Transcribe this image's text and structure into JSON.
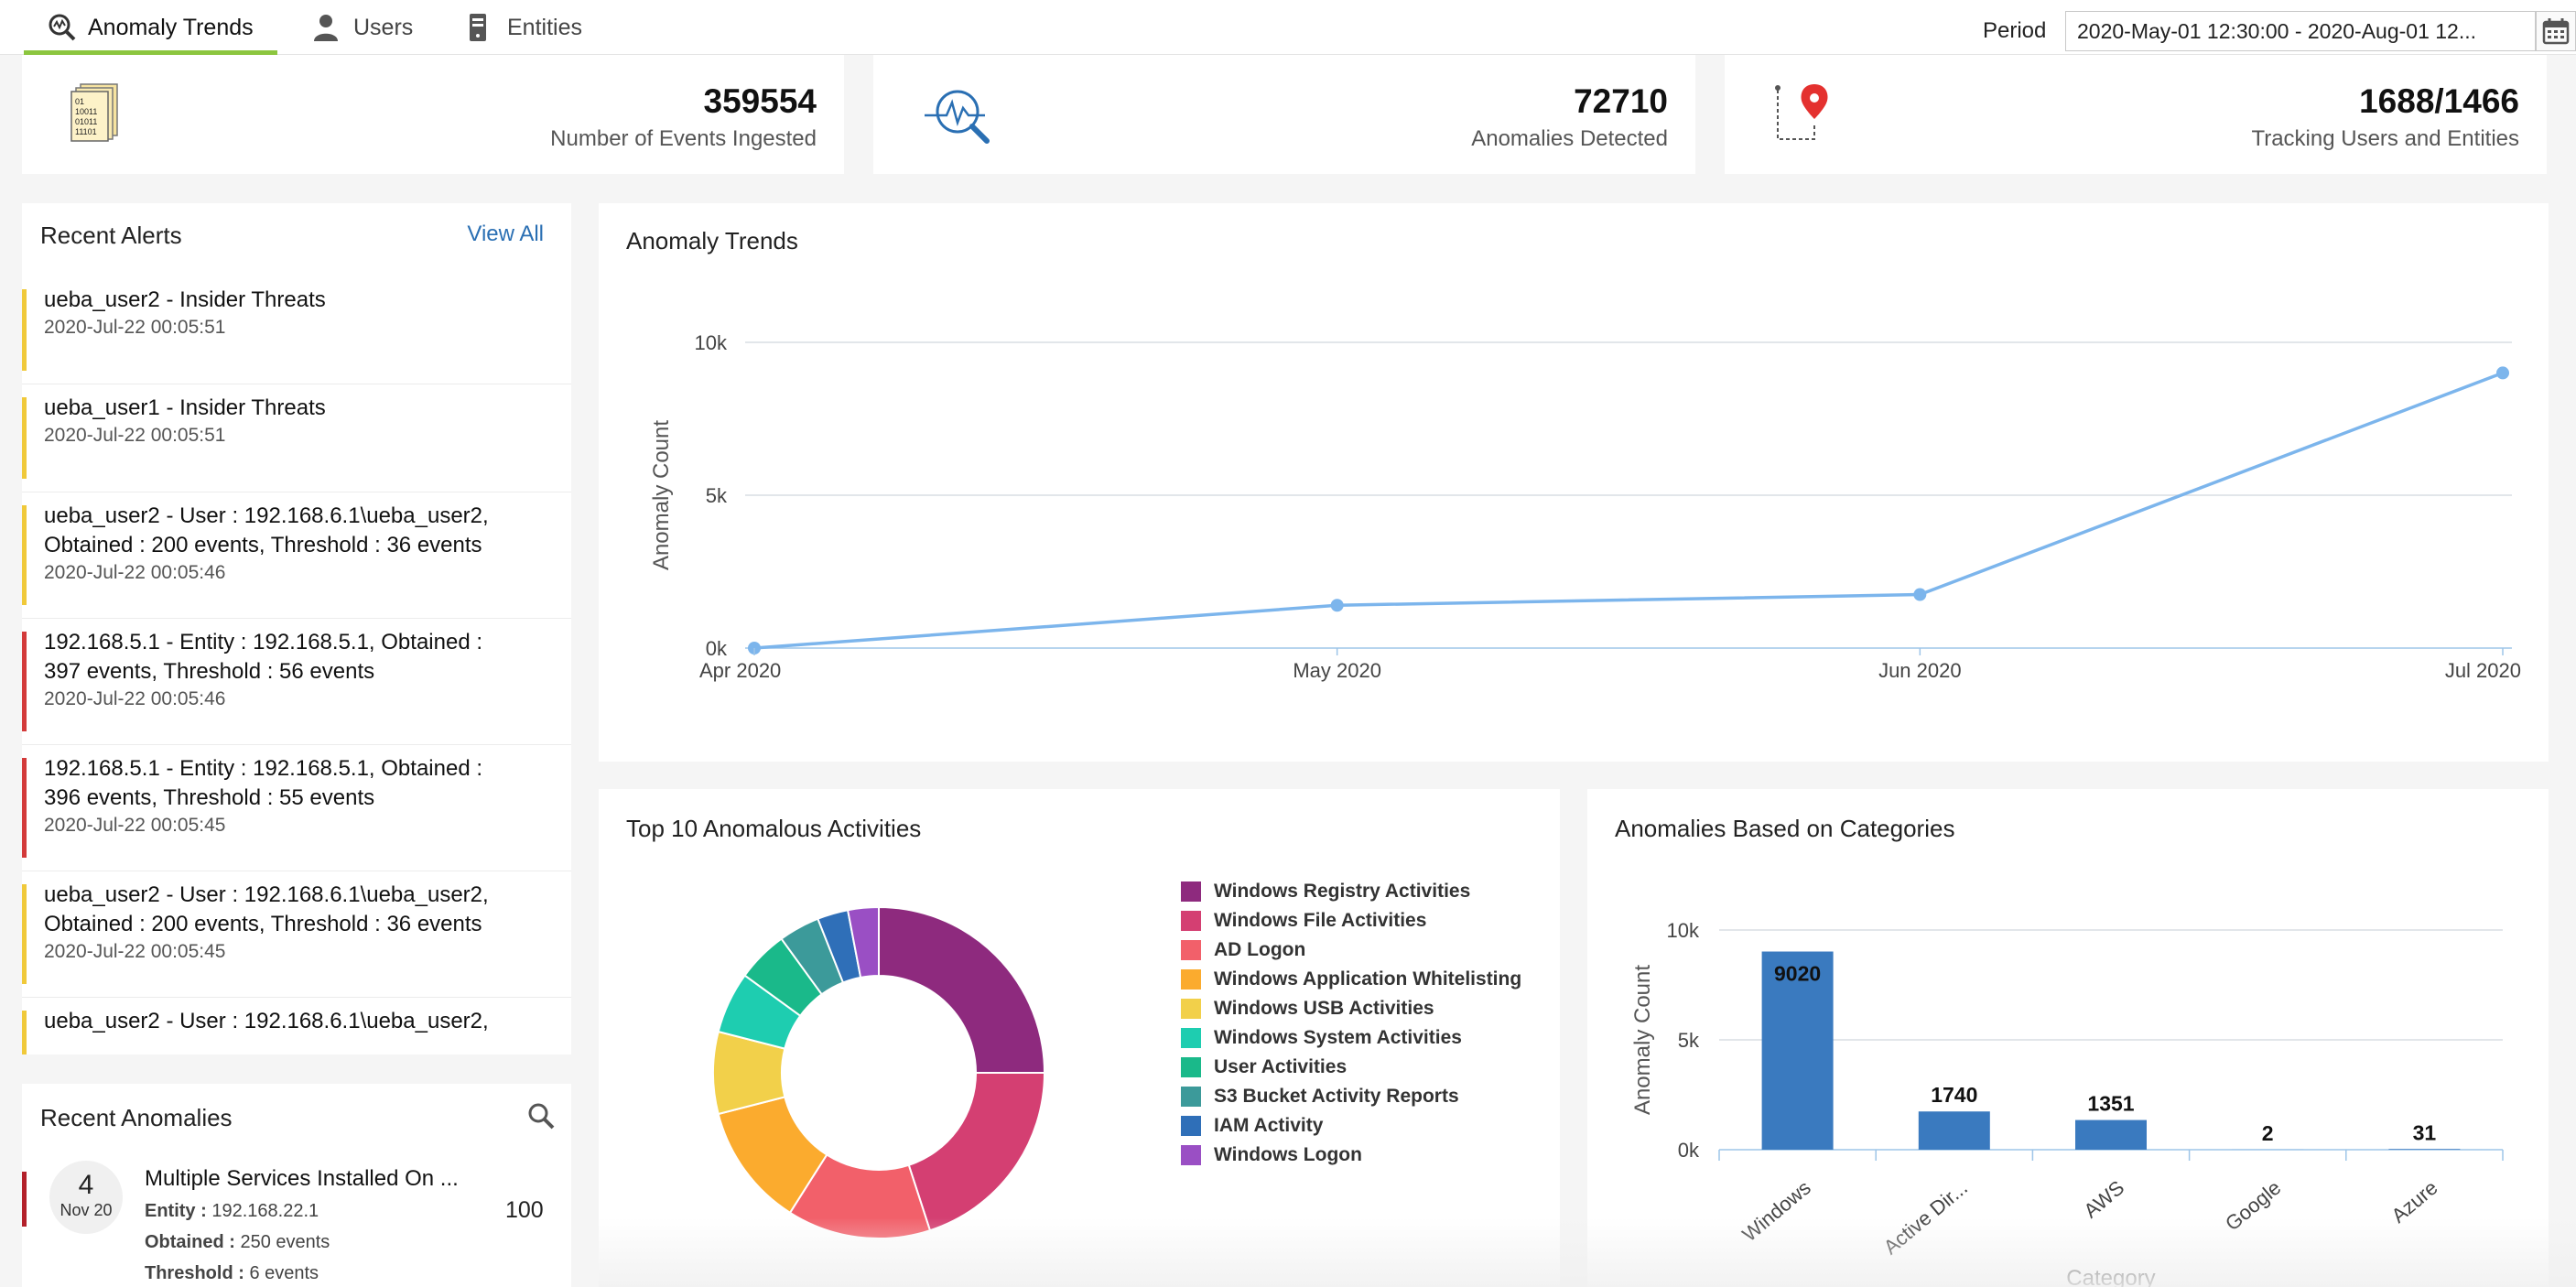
{
  "nav": {
    "tabs": [
      {
        "label": "Anomaly Trends",
        "active": true
      },
      {
        "label": "Users"
      },
      {
        "label": "Entities"
      }
    ],
    "period_label": "Period",
    "period_value": "2020-May-01 12:30:00 - 2020-Aug-01 12..."
  },
  "stats": {
    "events": {
      "value": "359554",
      "label": "Number of Events Ingested"
    },
    "anomalies": {
      "value": "72710",
      "label": "Anomalies Detected"
    },
    "tracking": {
      "value": "1688/1466",
      "label": "Tracking Users and Entities"
    }
  },
  "alerts": {
    "title": "Recent Alerts",
    "view_all": "View All",
    "items": [
      {
        "line1": "ueba_user2 - Insider Threats",
        "line2": "",
        "time": "2020-Jul-22 00:05:51",
        "color": "#f0c93a"
      },
      {
        "line1": "ueba_user1 - Insider Threats",
        "line2": "",
        "time": "2020-Jul-22 00:05:51",
        "color": "#f0c93a"
      },
      {
        "line1": "ueba_user2 - User : 192.168.6.1\\ueba_user2,",
        "line2": "Obtained : 200 events, Threshold : 36 events",
        "time": "2020-Jul-22 00:05:46",
        "color": "#f0c93a"
      },
      {
        "line1": "192.168.5.1 - Entity : 192.168.5.1, Obtained :",
        "line2": "397 events, Threshold : 56 events",
        "time": "2020-Jul-22 00:05:46",
        "color": "#d33a3a"
      },
      {
        "line1": "192.168.5.1 - Entity : 192.168.5.1, Obtained :",
        "line2": "396 events, Threshold : 55 events",
        "time": "2020-Jul-22 00:05:45",
        "color": "#d33a3a"
      },
      {
        "line1": "ueba_user2 - User : 192.168.6.1\\ueba_user2,",
        "line2": "Obtained : 200 events, Threshold : 36 events",
        "time": "2020-Jul-22 00:05:45",
        "color": "#f0c93a"
      },
      {
        "line1": "ueba_user2 - User : 192.168.6.1\\ueba_user2,",
        "line2": "",
        "time": "",
        "color": "#f0c93a"
      }
    ]
  },
  "anomalies": {
    "title": "Recent Anomalies",
    "item": {
      "day": "4",
      "month": "Nov 20",
      "title": "Multiple Services Installed On ...",
      "entity_label": "Entity :",
      "entity_value": "192.168.22.1",
      "obtained_label": "Obtained :",
      "obtained_value": "250 events",
      "threshold_label": "Threshold :",
      "threshold_value": "6 events",
      "score": "100",
      "color": "#b3202a"
    }
  },
  "trend": {
    "title": "Anomaly Trends",
    "chart_data": {
      "type": "line",
      "x": [
        "Apr 2020",
        "May 2020",
        "Jun 2020",
        "Jul 2020"
      ],
      "y": [
        0,
        1400,
        1750,
        9000
      ],
      "ylabel": "Anomaly Count",
      "yticks": [
        "0k",
        "5k",
        "10k"
      ],
      "ylim": [
        0,
        10000
      ],
      "color": "#7cb5ec"
    }
  },
  "top10": {
    "title": "Top 10 Anomalous Activities",
    "chart_data": {
      "type": "pie",
      "labels": [
        "Windows Registry Activities",
        "Windows File Activities",
        "AD Logon",
        "Windows Application Whitelisting",
        "Windows USB Activities",
        "Windows System Activities",
        "User Activities",
        "S3 Bucket Activity Reports",
        "IAM Activity",
        "Windows Logon"
      ],
      "values": [
        25,
        20,
        14,
        12,
        8,
        6,
        5,
        4,
        3,
        3
      ],
      "colors": [
        "#8e2a7e",
        "#d43f72",
        "#f2606a",
        "#fbab2e",
        "#f2d04a",
        "#1ecdb0",
        "#1ab98a",
        "#3c9a9a",
        "#2f6fb8",
        "#9a4fc4"
      ]
    }
  },
  "categories": {
    "title": "Anomalies Based on Categories",
    "chart_data": {
      "type": "bar",
      "categories": [
        "Windows",
        "Active Dir...",
        "AWS",
        "Google",
        "Azure"
      ],
      "values": [
        9020,
        1740,
        1351,
        2,
        31
      ],
      "ylabel": "Anomaly Count",
      "xlabel": "Category",
      "yticks": [
        "0k",
        "5k",
        "10k"
      ],
      "ylim": [
        0,
        10000
      ],
      "color": "#3a7abf"
    }
  }
}
